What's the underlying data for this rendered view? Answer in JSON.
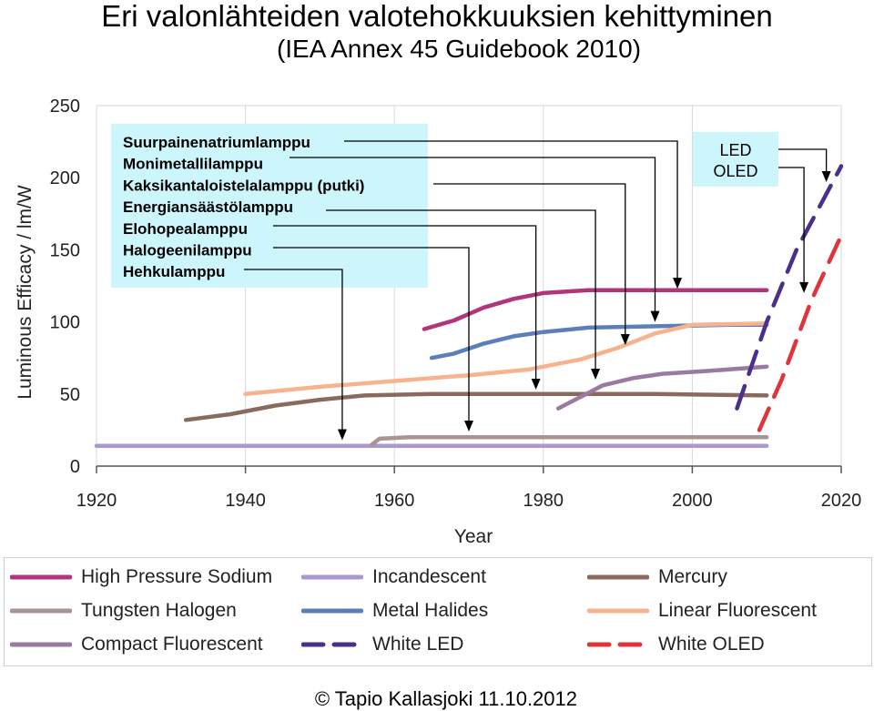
{
  "page": {
    "title": "Eri valonlähteiden valotehokkuuksien kehittyminen",
    "subtitle": "(IEA Annex 45 Guidebook 2010)",
    "copyright": "© Tapio Kallasjoki 11.10.2012"
  },
  "chart_data": {
    "type": "line",
    "xlabel": "Year",
    "ylabel": "Luminous Efficacy / lm/W",
    "xlim": [
      1920,
      2020
    ],
    "ylim": [
      0,
      250
    ],
    "x_ticks": [
      "1920",
      "1940",
      "1960",
      "1980",
      "2000",
      "2020"
    ],
    "y_ticks": [
      "0",
      "50",
      "100",
      "150",
      "200",
      "250"
    ],
    "grid": "vertical",
    "series": [
      {
        "key": "hps",
        "name": "High Pressure Sodium",
        "color": "#b0357a",
        "style": "solid",
        "points": [
          [
            1964,
            95
          ],
          [
            1968,
            101
          ],
          [
            1972,
            110
          ],
          [
            1976,
            116
          ],
          [
            1980,
            120
          ],
          [
            1986,
            122
          ],
          [
            1995,
            122
          ],
          [
            2010,
            122
          ]
        ]
      },
      {
        "key": "incandescent",
        "name": "Incandescent",
        "color": "#a89ad0",
        "style": "solid",
        "points": [
          [
            1920,
            14
          ],
          [
            1940,
            14
          ],
          [
            1960,
            14
          ],
          [
            1980,
            14
          ],
          [
            2000,
            14
          ],
          [
            2010,
            14
          ]
        ]
      },
      {
        "key": "mercury",
        "name": "Mercury",
        "color": "#8a6a5e",
        "style": "solid",
        "points": [
          [
            1932,
            32
          ],
          [
            1938,
            36
          ],
          [
            1944,
            42
          ],
          [
            1950,
            46
          ],
          [
            1956,
            49
          ],
          [
            1965,
            50
          ],
          [
            1980,
            50
          ],
          [
            1995,
            50
          ],
          [
            2010,
            49
          ]
        ]
      },
      {
        "key": "tungsten_halogen",
        "name": "Tungsten Halogen",
        "color": "#a89494",
        "style": "solid",
        "points": [
          [
            1957,
            15
          ],
          [
            1958,
            19
          ],
          [
            1962,
            20
          ],
          [
            1975,
            20
          ],
          [
            1990,
            20
          ],
          [
            2010,
            20
          ]
        ]
      },
      {
        "key": "metal_halides",
        "name": "Metal Halides",
        "color": "#5b7fbc",
        "style": "solid",
        "points": [
          [
            1965,
            75
          ],
          [
            1968,
            78
          ],
          [
            1972,
            85
          ],
          [
            1976,
            90
          ],
          [
            1980,
            93
          ],
          [
            1986,
            96
          ],
          [
            1995,
            97
          ],
          [
            2005,
            98
          ],
          [
            2010,
            98
          ]
        ]
      },
      {
        "key": "linear_fluorescent",
        "name": "Linear Fluorescent",
        "color": "#f7b38e",
        "style": "solid",
        "points": [
          [
            1940,
            50
          ],
          [
            1950,
            55
          ],
          [
            1960,
            59
          ],
          [
            1970,
            63
          ],
          [
            1978,
            67
          ],
          [
            1985,
            74
          ],
          [
            1990,
            82
          ],
          [
            1995,
            92
          ],
          [
            2000,
            98
          ],
          [
            2010,
            99
          ]
        ]
      },
      {
        "key": "compact_fluorescent",
        "name": "Compact Fluorescent",
        "color": "#9a7aa0",
        "style": "solid",
        "points": [
          [
            1982,
            40
          ],
          [
            1985,
            48
          ],
          [
            1988,
            56
          ],
          [
            1992,
            61
          ],
          [
            1996,
            64
          ],
          [
            2002,
            66
          ],
          [
            2010,
            69
          ]
        ]
      },
      {
        "key": "white_led",
        "name": "White LED",
        "color": "#4a2f8c",
        "style": "dashed",
        "points": [
          [
            2006,
            40
          ],
          [
            2010,
            100
          ],
          [
            2014,
            150
          ],
          [
            2020,
            208
          ]
        ]
      },
      {
        "key": "white_oled",
        "name": "White OLED",
        "color": "#e0343c",
        "style": "dashed",
        "points": [
          [
            2009,
            25
          ],
          [
            2012,
            60
          ],
          [
            2016,
            115
          ],
          [
            2020,
            160
          ]
        ]
      }
    ],
    "annotation_box": {
      "labels": [
        "Suurpainenatriumlamppu",
        "Monimetallilamppu",
        "Kaksikantaloistelalamppu (putki)",
        "Energiansäästölamppu",
        "Elohopealamppu",
        "Halogeenilamppu",
        "Hehkulamppu"
      ],
      "arrow_targets": [
        [
          1998,
          123
        ],
        [
          1995,
          100
        ],
        [
          1991,
          84
        ],
        [
          1987,
          60
        ],
        [
          1979,
          53
        ],
        [
          1970,
          24
        ],
        [
          1953,
          18
        ]
      ],
      "background": "#ccf6fb"
    },
    "led_box": {
      "labels": [
        "LED",
        "OLED"
      ],
      "arrow_targets": [
        [
          2018,
          197
        ],
        [
          2015,
          120
        ]
      ],
      "background": "#ccf6fb"
    },
    "legend": {
      "placement": "bottom",
      "items": [
        {
          "key": "hps",
          "label": "High Pressure Sodium"
        },
        {
          "key": "incandescent",
          "label": "Incandescent"
        },
        {
          "key": "mercury",
          "label": "Mercury"
        },
        {
          "key": "tungsten_halogen",
          "label": "Tungsten Halogen"
        },
        {
          "key": "metal_halides",
          "label": "Metal Halides"
        },
        {
          "key": "linear_fluorescent",
          "label": "Linear Fluorescent"
        },
        {
          "key": "compact_fluorescent",
          "label": "Compact Fluorescent"
        },
        {
          "key": "white_led",
          "label": "White LED"
        },
        {
          "key": "white_oled",
          "label": "White OLED"
        }
      ]
    }
  }
}
